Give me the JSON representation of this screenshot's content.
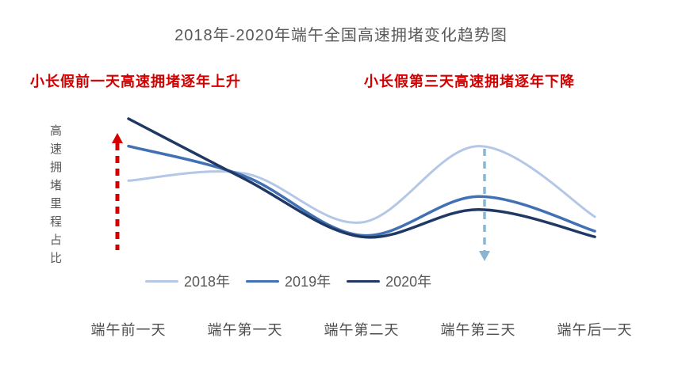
{
  "chart_data": {
    "type": "line",
    "title": "2018年-2020年端午全国高速拥堵变化趋势图",
    "ylabel": "高速拥堵里程占比",
    "xlabel": "",
    "categories": [
      "端午前一天",
      "端午第一天",
      "端午第二天",
      "端午第三天",
      "端午后一天"
    ],
    "series": [
      {
        "name": "2018年",
        "color": "#b4c7e7",
        "values": [
          57,
          62,
          28,
          81,
          32
        ]
      },
      {
        "name": "2019年",
        "color": "#4170b4",
        "values": [
          81,
          60,
          19,
          46,
          22
        ]
      },
      {
        "name": "2020年",
        "color": "#1f3864",
        "values": [
          100,
          58,
          18,
          37,
          18
        ]
      }
    ],
    "value_note": "relative congested-mileage share index, no numeric axis shown",
    "ylim": [
      0,
      105
    ],
    "grid": false,
    "legend_position": "bottom-left-inside",
    "annotations": [
      {
        "text": "小长假前一天高速拥堵逐年上升",
        "color": "#d40000",
        "arrow": "up",
        "arrow_color": "#d40000",
        "x_category": "端午前一天"
      },
      {
        "text": "小长假第三天高速拥堵逐年下降",
        "color": "#d40000",
        "arrow": "down",
        "arrow_color": "#8ab5d2",
        "x_category": "端午第三天"
      }
    ]
  },
  "colors": {
    "background": "#ffffff",
    "title_text": "#595959",
    "axis_text": "#4d4d4d",
    "legend_text": "#595959"
  }
}
